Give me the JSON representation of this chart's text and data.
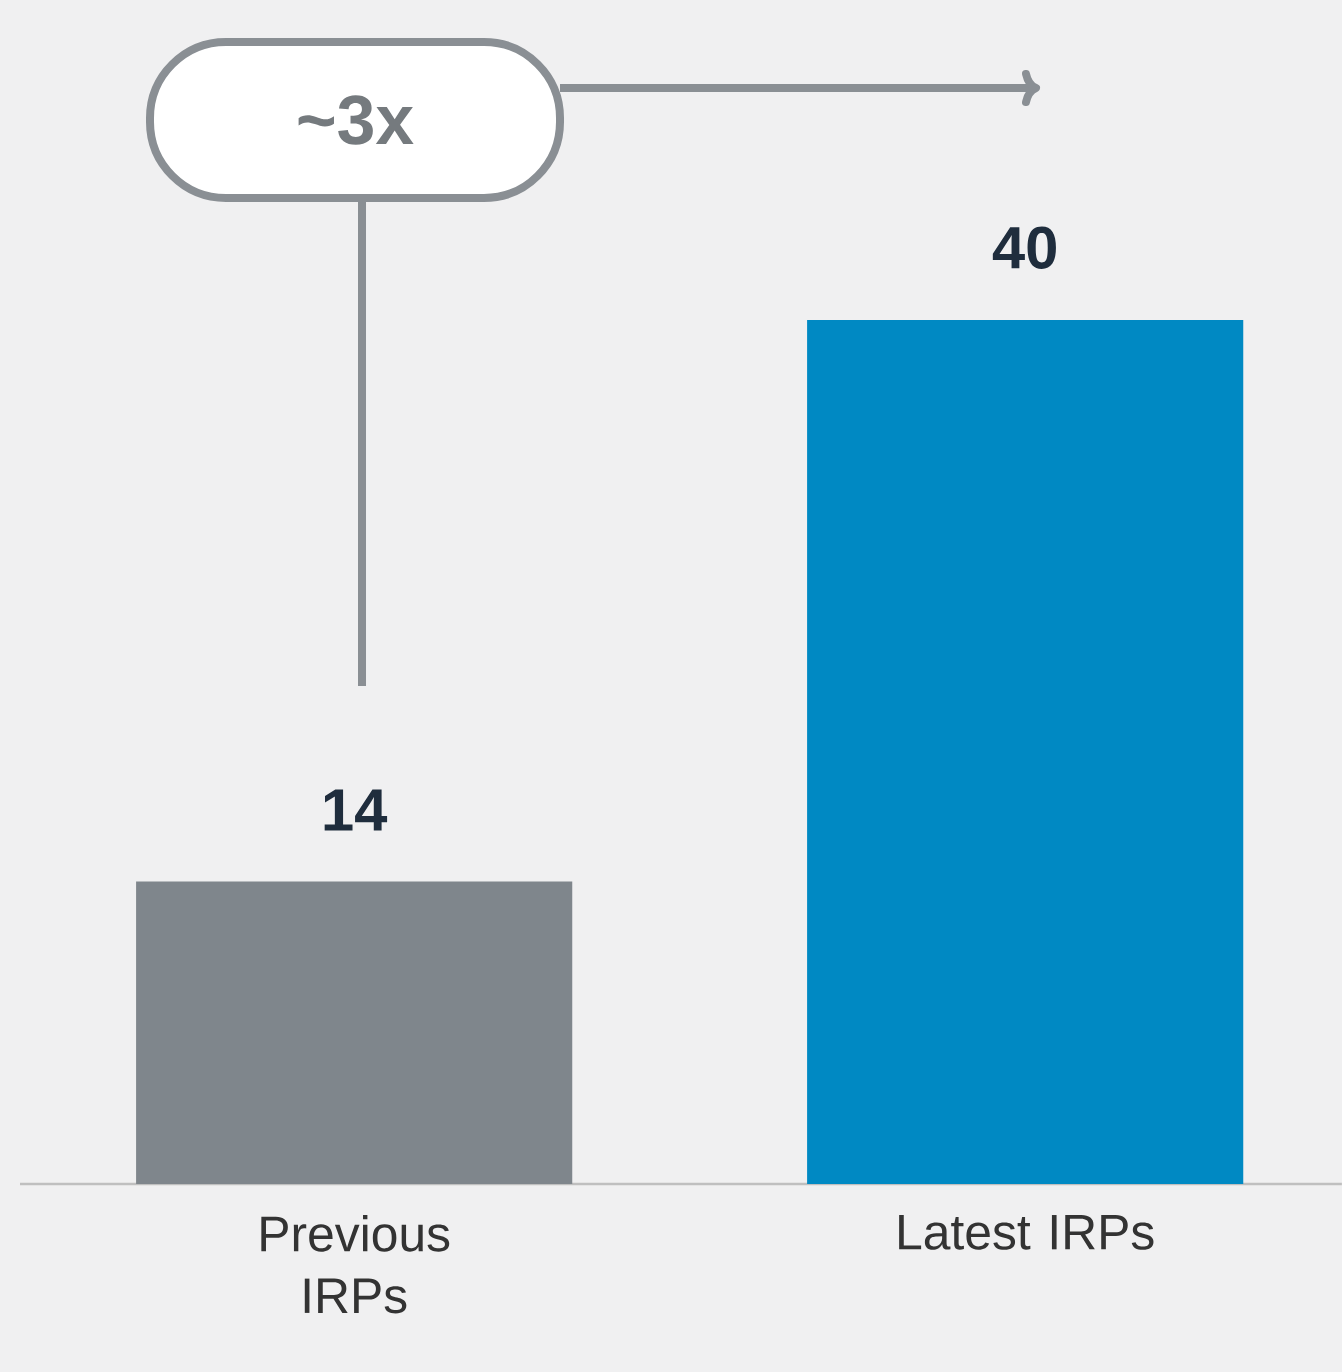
{
  "chart_data": {
    "type": "bar",
    "categories": [
      "Previous IRPs",
      "Latest IRPs"
    ],
    "values": [
      14,
      40
    ],
    "colors": [
      "#7f868c",
      "#0089c3"
    ],
    "data_labels": true,
    "annotations": [
      "~3x"
    ]
  }
}
